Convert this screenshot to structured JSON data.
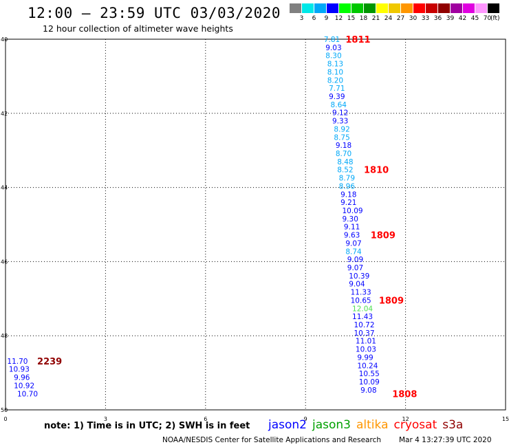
{
  "header": {
    "title": "12:00 – 23:59 UTC 03/03/2020",
    "subtitle": "12 hour collection of altimeter wave heights"
  },
  "color_scale": {
    "unit": "(ft)",
    "entries": [
      {
        "label": "3",
        "color": "#808080"
      },
      {
        "label": "6",
        "color": "#00e8e8"
      },
      {
        "label": "9",
        "color": "#00a8f8"
      },
      {
        "label": "12",
        "color": "#0000ff"
      },
      {
        "label": "15",
        "color": "#00ff00"
      },
      {
        "label": "18",
        "color": "#00c800"
      },
      {
        "label": "21",
        "color": "#009600"
      },
      {
        "label": "24",
        "color": "#ffff00"
      },
      {
        "label": "27",
        "color": "#f0c800"
      },
      {
        "label": "30",
        "color": "#ff9600"
      },
      {
        "label": "33",
        "color": "#ff0000"
      },
      {
        "label": "36",
        "color": "#c80000"
      },
      {
        "label": "39",
        "color": "#900000"
      },
      {
        "label": "42",
        "color": "#a000a0"
      },
      {
        "label": "45",
        "color": "#e000e0"
      },
      {
        "label": "70",
        "color": "#ff96ff"
      },
      {
        "label": "",
        "color": "#000000"
      }
    ]
  },
  "chart_data": {
    "type": "scatter",
    "x_ticks": [
      "0",
      "3",
      "6",
      "9",
      "12",
      "15"
    ],
    "y_ticks": [
      "40",
      "42",
      "44",
      "46",
      "48",
      "50"
    ],
    "xlim": [
      0,
      15
    ],
    "ylim": [
      40,
      50
    ],
    "grid": true,
    "points": [
      {
        "x": 9.55,
        "y": 40.0,
        "value": "7.81",
        "color": "#00a8f8"
      },
      {
        "x": 9.6,
        "y": 40.22,
        "value": "9.03",
        "color": "#0000ff"
      },
      {
        "x": 9.6,
        "y": 40.44,
        "value": "8.30",
        "color": "#00a8f8"
      },
      {
        "x": 9.65,
        "y": 40.66,
        "value": "8.13",
        "color": "#00a8f8"
      },
      {
        "x": 9.65,
        "y": 40.88,
        "value": "8.10",
        "color": "#00a8f8"
      },
      {
        "x": 9.65,
        "y": 41.1,
        "value": "8.20",
        "color": "#00a8f8"
      },
      {
        "x": 9.7,
        "y": 41.32,
        "value": "7.71",
        "color": "#00a8f8"
      },
      {
        "x": 9.7,
        "y": 41.54,
        "value": "9.39",
        "color": "#0000ff"
      },
      {
        "x": 9.75,
        "y": 41.76,
        "value": "8.64",
        "color": "#00a8f8"
      },
      {
        "x": 9.8,
        "y": 41.98,
        "value": "9.12",
        "color": "#0000ff"
      },
      {
        "x": 9.8,
        "y": 42.2,
        "value": "9.33",
        "color": "#0000ff"
      },
      {
        "x": 9.85,
        "y": 42.42,
        "value": "8.92",
        "color": "#00a8f8"
      },
      {
        "x": 9.85,
        "y": 42.64,
        "value": "8.75",
        "color": "#00a8f8"
      },
      {
        "x": 9.9,
        "y": 42.86,
        "value": "9.18",
        "color": "#0000ff"
      },
      {
        "x": 9.9,
        "y": 43.08,
        "value": "8.70",
        "color": "#00a8f8"
      },
      {
        "x": 9.95,
        "y": 43.3,
        "value": "8.48",
        "color": "#00a8f8"
      },
      {
        "x": 9.95,
        "y": 43.52,
        "value": "8.52",
        "color": "#00a8f8"
      },
      {
        "x": 10.0,
        "y": 43.74,
        "value": "8.79",
        "color": "#00a8f8"
      },
      {
        "x": 10.0,
        "y": 43.96,
        "value": "8.96",
        "color": "#00a8f8"
      },
      {
        "x": 10.05,
        "y": 44.18,
        "value": "9.18",
        "color": "#0000ff"
      },
      {
        "x": 10.05,
        "y": 44.4,
        "value": "9.21",
        "color": "#0000ff"
      },
      {
        "x": 10.1,
        "y": 44.62,
        "value": "10.09",
        "color": "#0000ff"
      },
      {
        "x": 10.1,
        "y": 44.84,
        "value": "9.30",
        "color": "#0000ff"
      },
      {
        "x": 10.15,
        "y": 45.06,
        "value": "9.11",
        "color": "#0000ff"
      },
      {
        "x": 10.15,
        "y": 45.28,
        "value": "9.63",
        "color": "#0000ff"
      },
      {
        "x": 10.2,
        "y": 45.5,
        "value": "9.07",
        "color": "#0000ff"
      },
      {
        "x": 10.2,
        "y": 45.72,
        "value": "8.74",
        "color": "#00a8f8"
      },
      {
        "x": 10.25,
        "y": 45.94,
        "value": "9.09",
        "color": "#0000ff"
      },
      {
        "x": 10.25,
        "y": 46.16,
        "value": "9.07",
        "color": "#0000ff"
      },
      {
        "x": 10.3,
        "y": 46.38,
        "value": "10.39",
        "color": "#0000ff"
      },
      {
        "x": 10.3,
        "y": 46.6,
        "value": "9.04",
        "color": "#0000ff"
      },
      {
        "x": 10.35,
        "y": 46.82,
        "value": "11.33",
        "color": "#0000ff"
      },
      {
        "x": 10.35,
        "y": 47.04,
        "value": "10.65",
        "color": "#0000ff"
      },
      {
        "x": 10.4,
        "y": 47.26,
        "value": "12.04",
        "color": "#50e050"
      },
      {
        "x": 10.4,
        "y": 47.48,
        "value": "11.43",
        "color": "#0000ff"
      },
      {
        "x": 10.45,
        "y": 47.7,
        "value": "10.72",
        "color": "#0000ff"
      },
      {
        "x": 10.45,
        "y": 47.92,
        "value": "10.37",
        "color": "#0000ff"
      },
      {
        "x": 10.5,
        "y": 48.14,
        "value": "11.01",
        "color": "#0000ff"
      },
      {
        "x": 10.5,
        "y": 48.36,
        "value": "10.03",
        "color": "#0000ff"
      },
      {
        "x": 10.55,
        "y": 48.58,
        "value": "9.99",
        "color": "#0000ff"
      },
      {
        "x": 10.55,
        "y": 48.8,
        "value": "10.24",
        "color": "#0000ff"
      },
      {
        "x": 10.6,
        "y": 49.02,
        "value": "10.55",
        "color": "#0000ff"
      },
      {
        "x": 10.6,
        "y": 49.24,
        "value": "10.09",
        "color": "#0000ff"
      },
      {
        "x": 10.65,
        "y": 49.46,
        "value": "9.08",
        "color": "#0000ff"
      },
      {
        "x": 0.05,
        "y": 48.68,
        "value": "11.70",
        "color": "#0000ff"
      },
      {
        "x": 0.1,
        "y": 48.9,
        "value": "10.93",
        "color": "#0000ff"
      },
      {
        "x": 0.25,
        "y": 49.12,
        "value": "9.96",
        "color": "#0000ff"
      },
      {
        "x": 0.25,
        "y": 49.34,
        "value": "10.92",
        "color": "#0000ff"
      },
      {
        "x": 0.35,
        "y": 49.56,
        "value": "10.70",
        "color": "#0000ff"
      }
    ],
    "pass_labels": [
      {
        "x": 10.2,
        "y": 40.0,
        "text": "1811",
        "color": "#ff0000"
      },
      {
        "x": 10.75,
        "y": 43.52,
        "text": "1810",
        "color": "#ff0000"
      },
      {
        "x": 10.95,
        "y": 45.28,
        "text": "1809",
        "color": "#ff0000"
      },
      {
        "x": 11.2,
        "y": 47.04,
        "text": "1809",
        "color": "#ff0000"
      },
      {
        "x": 11.6,
        "y": 49.56,
        "text": "1808",
        "color": "#ff0000"
      },
      {
        "x": 0.95,
        "y": 48.68,
        "text": "2239",
        "color": "#900000"
      }
    ]
  },
  "footer": {
    "note": "note:  1) Time is in UTC;  2) SWH is in feet",
    "satellites": [
      {
        "name": "jason2",
        "color": "#0000ff"
      },
      {
        "name": "jason3",
        "color": "#00a000"
      },
      {
        "name": "altika",
        "color": "#ff9600"
      },
      {
        "name": "cryosat",
        "color": "#ff0000"
      },
      {
        "name": "s3a",
        "color": "#900000"
      }
    ],
    "credit": "NOAA/NESDIS Center for Satellite Applications and Research",
    "timestamp": "Mar  4 13:27:39 UTC 2020"
  }
}
